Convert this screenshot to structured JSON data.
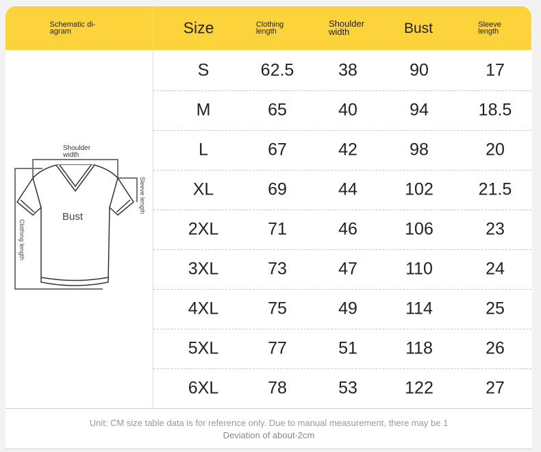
{
  "header": {
    "diagram": "Schematic di-\nagram",
    "size": "Size",
    "clothing_length": "Clothing\nlength",
    "shoulder_width": "Shoulder\nwidth",
    "bust": "Bust",
    "sleeve_length": "Sleeve\nlength"
  },
  "diagram": {
    "shoulder_width": "Shoulder\nwidth",
    "bust": "Bust",
    "clothing_length": "Clothing length",
    "sleeve_length": "Sleeve length"
  },
  "colors": {
    "header": "#fcd33a"
  },
  "rows": [
    [
      "S",
      "62.5",
      "38",
      "90",
      "17"
    ],
    [
      "M",
      "65",
      "40",
      "94",
      "18.5"
    ],
    [
      "L",
      "67",
      "42",
      "98",
      "20"
    ],
    [
      "XL",
      "69",
      "44",
      "102",
      "21.5"
    ],
    [
      "2XL",
      "71",
      "46",
      "106",
      "23"
    ],
    [
      "3XL",
      "73",
      "47",
      "110",
      "24"
    ],
    [
      "4XL",
      "75",
      "49",
      "114",
      "25"
    ],
    [
      "5XL",
      "77",
      "51",
      "118",
      "26"
    ],
    [
      "6XL",
      "78",
      "53",
      "122",
      "27"
    ]
  ],
  "footer": {
    "note": "Unit: CM size table data is for reference only. Due to manual measurement, there may be 1",
    "note_overlap": "Deviation of about-2cm"
  }
}
